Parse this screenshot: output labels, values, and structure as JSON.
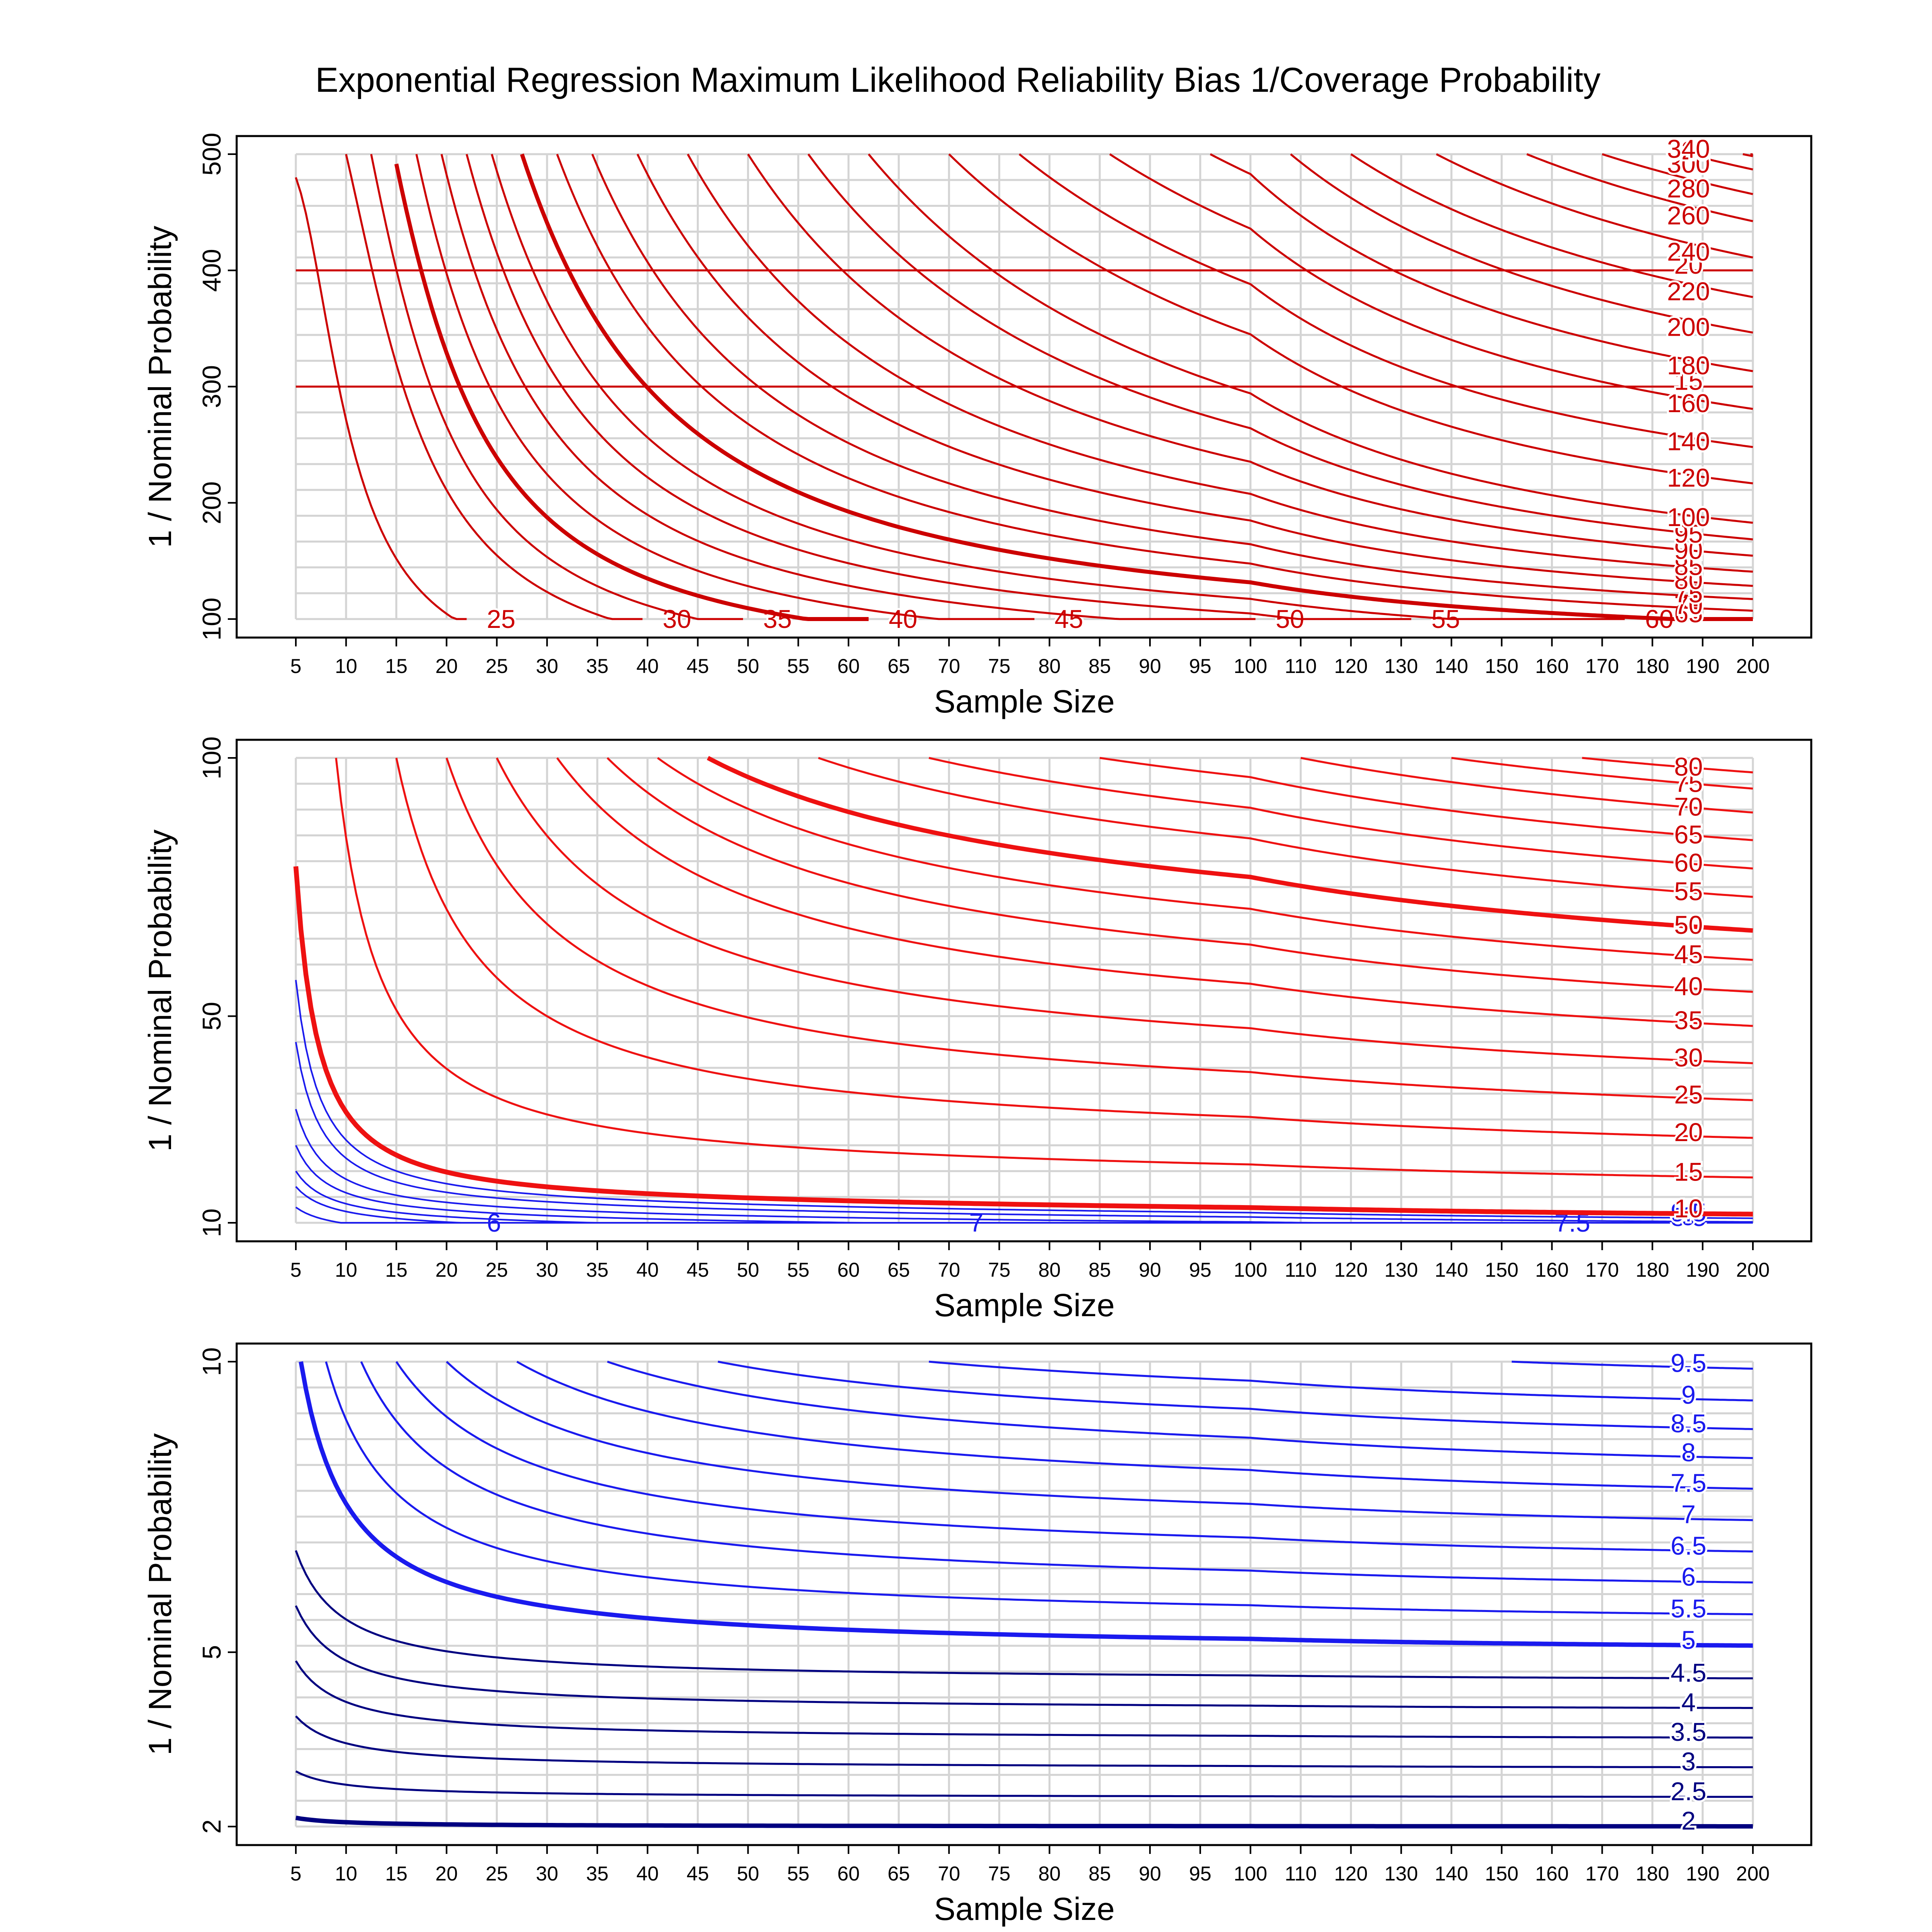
{
  "title": "Exponential Regression Maximum Likelihood Reliability Bias 1/Coverage Probability",
  "colors": {
    "red": "#cc0000",
    "brightRed": "#ee1111",
    "blue": "#1a1aee",
    "navy": "#000080",
    "grid": "#d4d4d4"
  },
  "chart_data": [
    {
      "type": "line",
      "xlabel": "Sample Size",
      "ylabel": "1 / Nominal Probability",
      "xlim": [
        5,
        200
      ],
      "ylim": [
        100,
        500
      ],
      "xticks": [
        5,
        10,
        15,
        20,
        25,
        30,
        35,
        40,
        45,
        50,
        55,
        60,
        65,
        70,
        75,
        80,
        85,
        90,
        95,
        100,
        110,
        120,
        130,
        140,
        150,
        160,
        170,
        180,
        190,
        200
      ],
      "yticks": [
        100,
        200,
        300,
        400,
        500
      ],
      "grid": true,
      "contour_levels": [
        {
          "level": 15,
          "label": "15"
        },
        {
          "level": 20,
          "label": "20"
        },
        {
          "level": 25,
          "label": "25"
        },
        {
          "level": 30,
          "label": "30"
        },
        {
          "level": 35,
          "label": "35"
        },
        {
          "level": 40,
          "label": "40"
        },
        {
          "level": 45,
          "label": "45"
        },
        {
          "level": 50,
          "label": "50"
        },
        {
          "level": 55,
          "label": "55"
        },
        {
          "level": 60,
          "label": "60"
        },
        {
          "level": 65,
          "label": "65"
        },
        {
          "level": 70,
          "label": "70"
        },
        {
          "level": 75,
          "label": "75"
        },
        {
          "level": 80,
          "label": "80"
        },
        {
          "level": 85,
          "label": "85"
        },
        {
          "level": 90,
          "label": "90"
        },
        {
          "level": 95,
          "label": "95"
        },
        {
          "level": 100,
          "label": "100"
        },
        {
          "level": 120,
          "label": "120"
        },
        {
          "level": 140,
          "label": "140"
        },
        {
          "level": 160,
          "label": "160"
        },
        {
          "level": 180,
          "label": "180"
        },
        {
          "level": 200,
          "label": "200"
        },
        {
          "level": 220,
          "label": "220"
        },
        {
          "level": 240,
          "label": "240"
        },
        {
          "level": 260,
          "label": "260"
        },
        {
          "level": 280,
          "label": "280"
        },
        {
          "level": 300,
          "label": "300"
        },
        {
          "level": 320,
          "label": "320"
        },
        {
          "level": 340,
          "label": "340"
        }
      ]
    },
    {
      "type": "line",
      "xlabel": "Sample Size",
      "ylabel": "1 / Nominal Probability",
      "xlim": [
        5,
        200
      ],
      "ylim": [
        10,
        100
      ],
      "xticks": [
        5,
        10,
        15,
        20,
        25,
        30,
        35,
        40,
        45,
        50,
        55,
        60,
        65,
        70,
        75,
        80,
        85,
        90,
        95,
        100,
        110,
        120,
        130,
        140,
        150,
        160,
        170,
        180,
        190,
        200
      ],
      "yticks": [
        10,
        50,
        100
      ],
      "grid": true,
      "contour_levels": [
        {
          "level": 6,
          "label": "6"
        },
        {
          "level": 7,
          "label": "7"
        },
        {
          "level": 7.5,
          "label": "7.5"
        },
        {
          "level": 8,
          "label": "8"
        },
        {
          "level": 8.5,
          "label": "8.5"
        },
        {
          "level": 9,
          "label": "9"
        },
        {
          "level": 9.5,
          "label": "9.5"
        },
        {
          "level": 10,
          "label": "10"
        },
        {
          "level": 15,
          "label": "15"
        },
        {
          "level": 20,
          "label": "20"
        },
        {
          "level": 25,
          "label": "25"
        },
        {
          "level": 30,
          "label": "30"
        },
        {
          "level": 35,
          "label": "35"
        },
        {
          "level": 40,
          "label": "40"
        },
        {
          "level": 45,
          "label": "45"
        },
        {
          "level": 50,
          "label": "50"
        },
        {
          "level": 55,
          "label": "55"
        },
        {
          "level": 60,
          "label": "60"
        },
        {
          "level": 65,
          "label": "65"
        },
        {
          "level": 70,
          "label": "70"
        },
        {
          "level": 75,
          "label": "75"
        },
        {
          "level": 80,
          "label": "80"
        }
      ]
    },
    {
      "type": "line",
      "xlabel": "Sample Size",
      "ylabel": "1 / Nominal Probability",
      "xlim": [
        5,
        200
      ],
      "ylim": [
        2,
        10
      ],
      "xticks": [
        5,
        10,
        15,
        20,
        25,
        30,
        35,
        40,
        45,
        50,
        55,
        60,
        65,
        70,
        75,
        80,
        85,
        90,
        95,
        100,
        110,
        120,
        130,
        140,
        150,
        160,
        170,
        180,
        190,
        200
      ],
      "yticks": [
        2,
        5,
        10
      ],
      "grid": true,
      "contour_levels": [
        {
          "level": 2,
          "label": "2"
        },
        {
          "level": 2.5,
          "label": "2.5"
        },
        {
          "level": 3,
          "label": "3"
        },
        {
          "level": 3.5,
          "label": "3.5"
        },
        {
          "level": 4,
          "label": "4"
        },
        {
          "level": 4.5,
          "label": "4.5"
        },
        {
          "level": 5,
          "label": "5"
        },
        {
          "level": 5.5,
          "label": "5.5"
        },
        {
          "level": 6,
          "label": "6"
        },
        {
          "level": 6.5,
          "label": "6.5"
        },
        {
          "level": 7,
          "label": "7"
        },
        {
          "level": 7.5,
          "label": "7.5"
        },
        {
          "level": 8,
          "label": "8"
        },
        {
          "level": 8.5,
          "label": "8.5"
        },
        {
          "level": 9,
          "label": "9"
        },
        {
          "level": 9.5,
          "label": "9.5"
        }
      ]
    }
  ]
}
